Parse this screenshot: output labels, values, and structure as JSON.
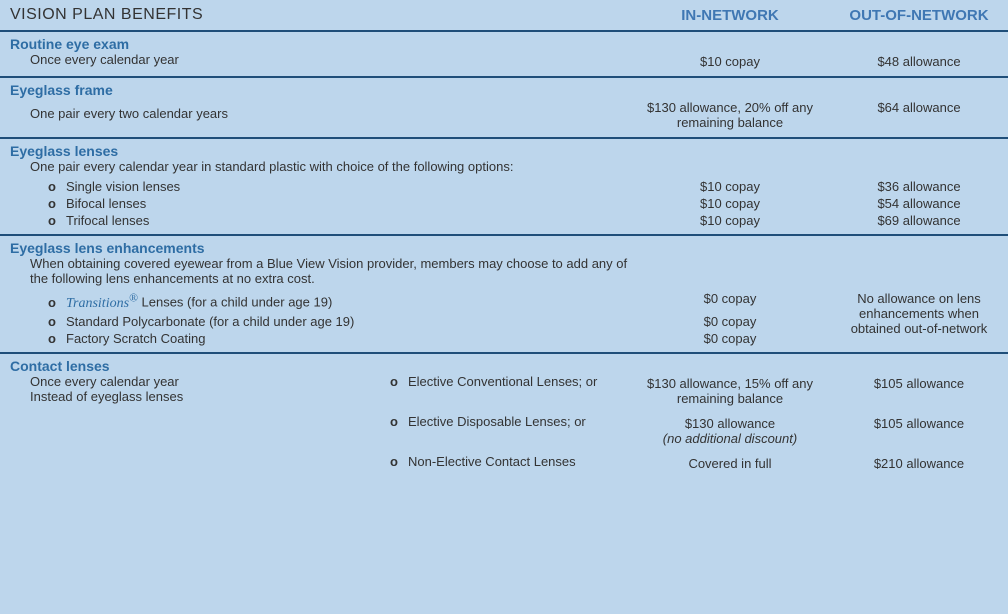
{
  "header": {
    "title": "VISION PLAN BENEFITS",
    "in_network": "IN-NETWORK",
    "out_network": "OUT-OF-NETWORK"
  },
  "sections": {
    "routine_exam": {
      "title": "Routine eye exam",
      "desc": "Once every calendar year",
      "in": "$10 copay",
      "out": "$48 allowance"
    },
    "frame": {
      "title": "Eyeglass frame",
      "desc": "One pair every two calendar years",
      "in": "$130 allowance, 20% off any remaining balance",
      "out": "$64 allowance"
    },
    "lenses": {
      "title": "Eyeglass lenses",
      "desc": "One pair every calendar year in standard plastic with choice of the following options:",
      "items": [
        {
          "label": "Single vision lenses",
          "in": "$10 copay",
          "out": "$36 allowance"
        },
        {
          "label": "Bifocal lenses",
          "in": "$10 copay",
          "out": "$54 allowance"
        },
        {
          "label": "Trifocal lenses",
          "in": "$10 copay",
          "out": "$69 allowance"
        }
      ]
    },
    "enhancements": {
      "title": "Eyeglass lens enhancements",
      "desc": "When obtaining covered eyewear from a Blue View Vision provider, members may choose to add any of the following lens enhancements at no extra cost.",
      "items": [
        {
          "brand": "Transitions",
          "label_suffix": " Lenses (for a child under age 19)",
          "in": "$0 copay"
        },
        {
          "label": "Standard Polycarbonate (for a child under age 19)",
          "in": "$0 copay"
        },
        {
          "label": "Factory Scratch Coating",
          "in": "$0 copay"
        }
      ],
      "out_note": "No allowance on lens enhancements when obtained out-of-network"
    },
    "contacts": {
      "title": "Contact lenses",
      "desc1": "Once every calendar year",
      "desc2": "Instead of eyeglass lenses",
      "items": [
        {
          "label": "Elective Conventional Lenses; or",
          "in": "$130 allowance, 15% off any remaining balance",
          "out": "$105 allowance"
        },
        {
          "label": "Elective Disposable Lenses; or",
          "in_line1": "$130 allowance",
          "in_line2": "(no additional discount)",
          "out": "$105 allowance"
        },
        {
          "label": "Non-Elective Contact Lenses",
          "in": "Covered in full",
          "out": "$210 allowance"
        }
      ]
    }
  },
  "colors": {
    "background": "#bdd6ec",
    "divider": "#1f4e79",
    "section_title": "#2e6da4",
    "header_text": "#3f77b3"
  }
}
